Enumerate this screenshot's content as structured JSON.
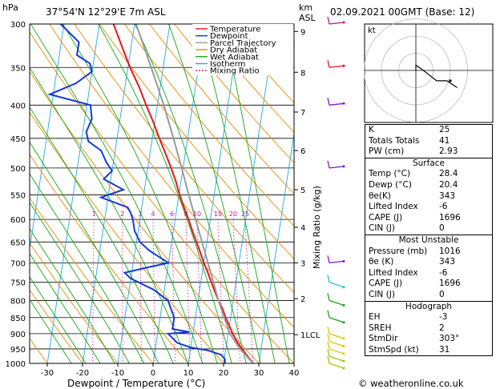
{
  "header": {
    "pressure_unit": "hPa",
    "location": "37°54'N  12°29'E  7m  ASL",
    "height_unit_1": "km",
    "height_unit_2": "ASL",
    "datetime": "02.09.2021  00GMT  (Base: 12)"
  },
  "footer": {
    "credit": "© weatheronline.co.uk"
  },
  "colors": {
    "temperature": "#e8141c",
    "dewpoint": "#1638d8",
    "parcel": "#9a9a9a",
    "dry_adiabat": "#e88a00",
    "wet_adiabat": "#14a814",
    "isotherm": "#22a8e0",
    "mixing_ratio": "#d0108a"
  },
  "chart_data": [
    {
      "type": "line",
      "title": "",
      "xlabel": "Dewpoint / Temperature (°C)",
      "ylabel": "hPa",
      "y2label": "Mixing Ratio (g/kg)",
      "y3label": "km ASL",
      "xlim": [
        -35,
        40
      ],
      "ylim": [
        1000,
        300
      ],
      "x_ticks": [
        -30,
        -20,
        -10,
        0,
        10,
        20,
        30,
        40
      ],
      "pressure_ticks": [
        300,
        350,
        400,
        450,
        500,
        550,
        600,
        650,
        700,
        750,
        800,
        850,
        900,
        950,
        1000
      ],
      "height_ticks": [
        {
          "label": "9",
          "p": 308
        },
        {
          "label": "8",
          "p": 356
        },
        {
          "label": "7",
          "p": 410
        },
        {
          "label": "6",
          "p": 470
        },
        {
          "label": "5",
          "p": 540
        },
        {
          "label": "4",
          "p": 617
        },
        {
          "label": "3",
          "p": 700
        },
        {
          "label": "2",
          "p": 795
        },
        {
          "label": "1LCL",
          "p": 903
        }
      ],
      "mixing_ratio_labels": [
        "1",
        "2",
        "3",
        "4",
        "6",
        "8",
        "10",
        "15",
        "20",
        "25"
      ],
      "legend": [
        "Temperature",
        "Dewpoint",
        "Parcel Trajectory",
        "Dry Adiabat",
        "Wet Adiabat",
        "Isotherm",
        "Mixing Ratio"
      ],
      "legend_position": "top-right",
      "series": [
        {
          "name": "Temperature",
          "points": [
            [
              1000,
              28.4
            ],
            [
              975,
              26.5
            ],
            [
              950,
              24.6
            ],
            [
              925,
              22.8
            ],
            [
              900,
              21.3
            ],
            [
              875,
              20.0
            ],
            [
              850,
              18.6
            ],
            [
              825,
              17.4
            ],
            [
              800,
              15.8
            ],
            [
              775,
              14.4
            ],
            [
              750,
              13.0
            ],
            [
              725,
              11.6
            ],
            [
              700,
              10.0
            ],
            [
              675,
              8.6
            ],
            [
              650,
              7.0
            ],
            [
              625,
              5.4
            ],
            [
              600,
              3.8
            ],
            [
              575,
              2.0
            ],
            [
              550,
              0.2
            ],
            [
              525,
              -1.4
            ],
            [
              500,
              -3.4
            ],
            [
              475,
              -5.6
            ],
            [
              450,
              -8.0
            ],
            [
              425,
              -10.4
            ],
            [
              400,
              -13.2
            ],
            [
              375,
              -16.0
            ],
            [
              350,
              -19.4
            ],
            [
              325,
              -22.6
            ],
            [
              300,
              -26.0
            ]
          ]
        },
        {
          "name": "Dewpoint",
          "points": [
            [
              1000,
              20.4
            ],
            [
              985,
              20.2
            ],
            [
              970,
              19.0
            ],
            [
              955,
              15.0
            ],
            [
              945,
              10.0
            ],
            [
              930,
              6.0
            ],
            [
              910,
              4.0
            ],
            [
              900,
              3.0
            ],
            [
              895,
              9.0
            ],
            [
              885,
              4.0
            ],
            [
              870,
              4.0
            ],
            [
              850,
              4.0
            ],
            [
              830,
              3.0
            ],
            [
              810,
              2.0
            ],
            [
              800,
              1.5
            ],
            [
              770,
              -3.0
            ],
            [
              740,
              -10.0
            ],
            [
              725,
              -12.0
            ],
            [
              710,
              -5.0
            ],
            [
              700,
              0.0
            ],
            [
              690,
              -2.0
            ],
            [
              670,
              -6.0
            ],
            [
              650,
              -9.0
            ],
            [
              625,
              -11.0
            ],
            [
              600,
              -12.0
            ],
            [
              585,
              -13.0
            ],
            [
              575,
              -14.0
            ],
            [
              555,
              -22.0
            ],
            [
              540,
              -16.0
            ],
            [
              520,
              -22.0
            ],
            [
              505,
              -20.0
            ],
            [
              490,
              -22.0
            ],
            [
              470,
              -24.0
            ],
            [
              455,
              -28.0
            ],
            [
              440,
              -29.0
            ],
            [
              420,
              -28.0
            ],
            [
              400,
              -29.0
            ],
            [
              385,
              -41.0
            ],
            [
              370,
              -34.0
            ],
            [
              355,
              -30.0
            ],
            [
              345,
              -31.0
            ],
            [
              335,
              -35.0
            ],
            [
              320,
              -35.0
            ],
            [
              300,
              -41.0
            ]
          ]
        },
        {
          "name": "Parcel Trajectory",
          "points": [
            [
              1000,
              28.4
            ],
            [
              950,
              24.0
            ],
            [
              900,
              20.5
            ],
            [
              850,
              18.2
            ],
            [
              800,
              15.8
            ],
            [
              750,
              13.6
            ],
            [
              700,
              11.2
            ],
            [
              650,
              8.6
            ],
            [
              600,
              5.8
            ],
            [
              550,
              2.8
            ],
            [
              500,
              -0.4
            ],
            [
              450,
              -4.0
            ],
            [
              400,
              -8.2
            ],
            [
              350,
              -13.4
            ],
            [
              300,
              -19.6
            ]
          ]
        }
      ]
    },
    {
      "type": "scatter",
      "title": "kt",
      "series": [
        {
          "name": "Hodograph",
          "points": [
            [
              0.0,
              0.0
            ],
            [
              0.0,
              3.0
            ],
            [
              3.0,
              1.0
            ],
            [
              7.0,
              -2.0
            ],
            [
              12.0,
              -6.0
            ],
            [
              18.0,
              -6.0
            ],
            [
              24.0,
              -10.0
            ]
          ]
        },
        {
          "name": "Storm motion",
          "points": [
            [
              20.0,
              -6.0
            ]
          ]
        }
      ]
    }
  ],
  "wind_barbs": [
    {
      "p": 300,
      "color": "#d0108a"
    },
    {
      "p": 350,
      "color": "#e8141c"
    },
    {
      "p": 400,
      "color": "#9010c8"
    },
    {
      "p": 500,
      "color": "#9010c8"
    },
    {
      "p": 700,
      "color": "#9010c8"
    },
    {
      "p": 750,
      "color": "#20c0c0"
    },
    {
      "p": 800,
      "color": "#14a814"
    },
    {
      "p": 850,
      "color": "#14a814"
    },
    {
      "p": 900,
      "color": "#d8c800"
    },
    {
      "p": 925,
      "color": "#d8c800"
    },
    {
      "p": 950,
      "color": "#d8c800"
    },
    {
      "p": 975,
      "color": "#a0c800"
    },
    {
      "p": 1000,
      "color": "#a0c800"
    }
  ],
  "panel": {
    "top": [
      {
        "label": "K",
        "value": "25"
      },
      {
        "label": "Totals Totals",
        "value": "41"
      },
      {
        "label": "PW (cm)",
        "value": "2.93"
      }
    ],
    "surface_title": "Surface",
    "surface": [
      {
        "label": "Temp (°C)",
        "value": "28.4"
      },
      {
        "label": "Dewp (°C)",
        "value": "20.4"
      },
      {
        "label": "θe(K)",
        "value": "343"
      },
      {
        "label": "Lifted Index",
        "value": "-6"
      },
      {
        "label": "CAPE (J)",
        "value": "1696"
      },
      {
        "label": "CIN (J)",
        "value": "0"
      }
    ],
    "unstable_title": "Most Unstable",
    "unstable": [
      {
        "label": "Pressure (mb)",
        "value": "1016"
      },
      {
        "label": "θe (K)",
        "value": "343"
      },
      {
        "label": "Lifted Index",
        "value": "-6"
      },
      {
        "label": "CAPE (J)",
        "value": "1696"
      },
      {
        "label": "CIN (J)",
        "value": "0"
      }
    ],
    "hodo_title": "Hodograph",
    "hodo": [
      {
        "label": "EH",
        "value": "-3"
      },
      {
        "label": "SREH",
        "value": "2"
      },
      {
        "label": "StmDir",
        "value": "303°"
      },
      {
        "label": "StmSpd (kt)",
        "value": "31"
      }
    ]
  }
}
